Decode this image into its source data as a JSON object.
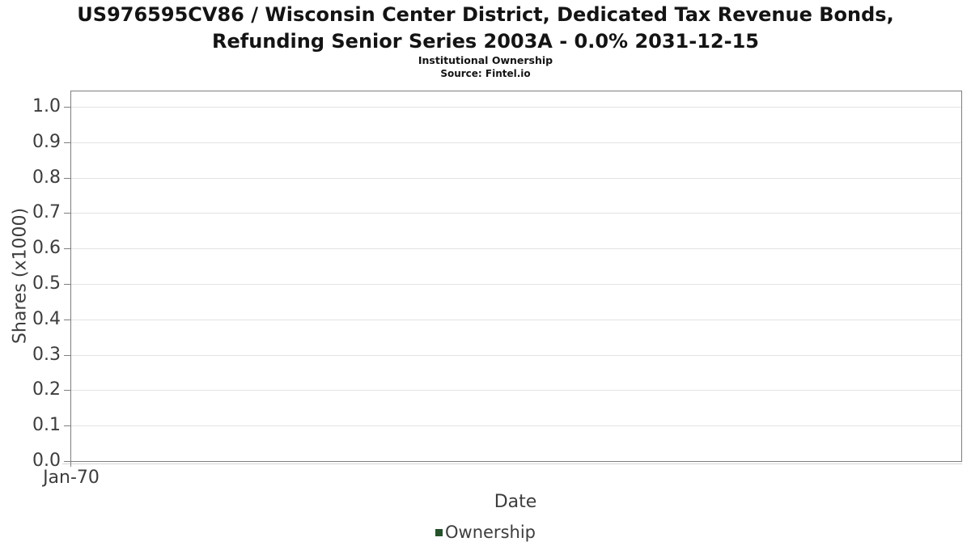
{
  "chart_data": {
    "type": "line",
    "title": "US976595CV86 / Wisconsin Center District, Dedicated Tax Revenue Bonds, Refunding Senior Series 2003A - 0.0% 2031-12-15",
    "title_lines": [
      "US976595CV86 / Wisconsin Center District, Dedicated Tax Revenue Bonds,",
      "Refunding Senior Series 2003A - 0.0% 2031-12-15"
    ],
    "subtitle": "Institutional Ownership",
    "source": "Source: Fintel.io",
    "xlabel": "Date",
    "ylabel": "Shares (x1000)",
    "ylim": [
      0.0,
      1.046
    ],
    "y_ticks": [
      0.0,
      0.1,
      0.2,
      0.3,
      0.4,
      0.5,
      0.6,
      0.7,
      0.8,
      0.9,
      1.0
    ],
    "y_tick_labels": [
      "0.0",
      "0.1",
      "0.2",
      "0.3",
      "0.4",
      "0.5",
      "0.6",
      "0.7",
      "0.8",
      "0.9",
      "1.0"
    ],
    "x_tick_labels": [
      "Jan-70"
    ],
    "grid": true,
    "legend_position": "bottom-center",
    "series": [
      {
        "name": "Ownership",
        "color": "#26522b",
        "x": [],
        "values": []
      }
    ]
  },
  "colors": {
    "background": "#ffffff",
    "title_text": "#141414",
    "axis_text": "#3d3d3d",
    "grid_line": "#e3e3e3",
    "plot_border": "#7e7e7e",
    "tick_mark": "#7e7e7e",
    "sub_axis_line": "#d6d6d6",
    "legend_ownership": "#26522b"
  }
}
